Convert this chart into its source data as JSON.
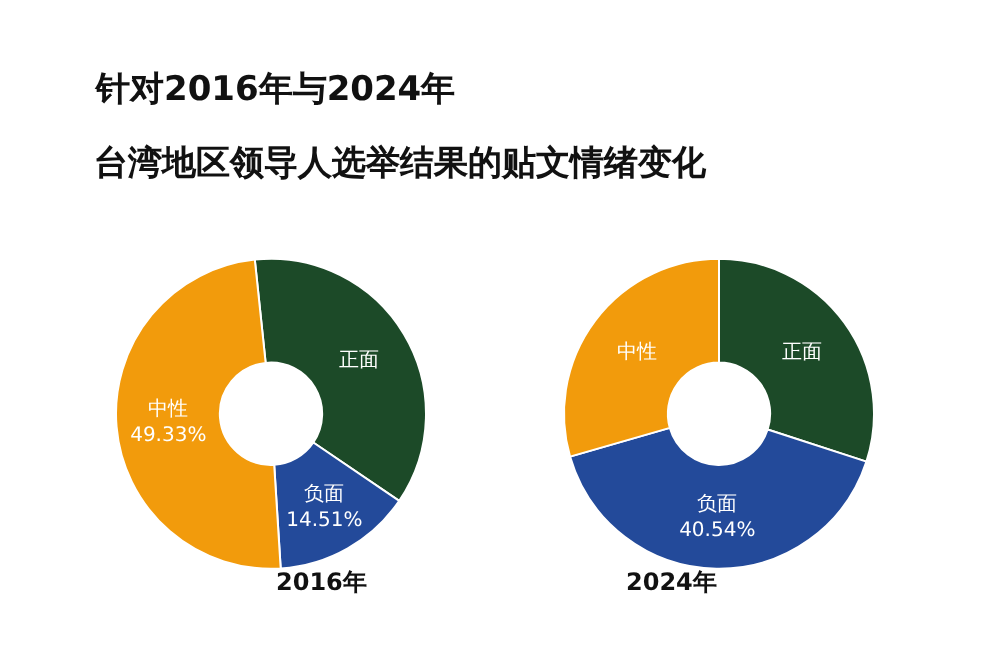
{
  "chart_data": [
    {
      "type": "donut",
      "title": "针对2016年与2024年",
      "subtitle": "台湾地区领导人选举结果的贴文情绪变化",
      "xlabel": "2016年",
      "categories": [
        "正面",
        "负面",
        "中性"
      ],
      "values": [
        36.16,
        14.51,
        49.33
      ],
      "colors": [
        "#1c4a28",
        "#234a9a",
        "#f29b0c"
      ],
      "value_labels": [
        null,
        "14.51%",
        "49.33%"
      ]
    },
    {
      "type": "donut",
      "xlabel": "2024年",
      "categories": [
        "正面",
        "负面",
        "中性"
      ],
      "values": [
        30.0,
        40.54,
        29.46
      ],
      "colors": [
        "#1c4a28",
        "#234a9a",
        "#f29b0c"
      ],
      "value_labels": [
        null,
        "40.54%",
        null
      ]
    }
  ]
}
